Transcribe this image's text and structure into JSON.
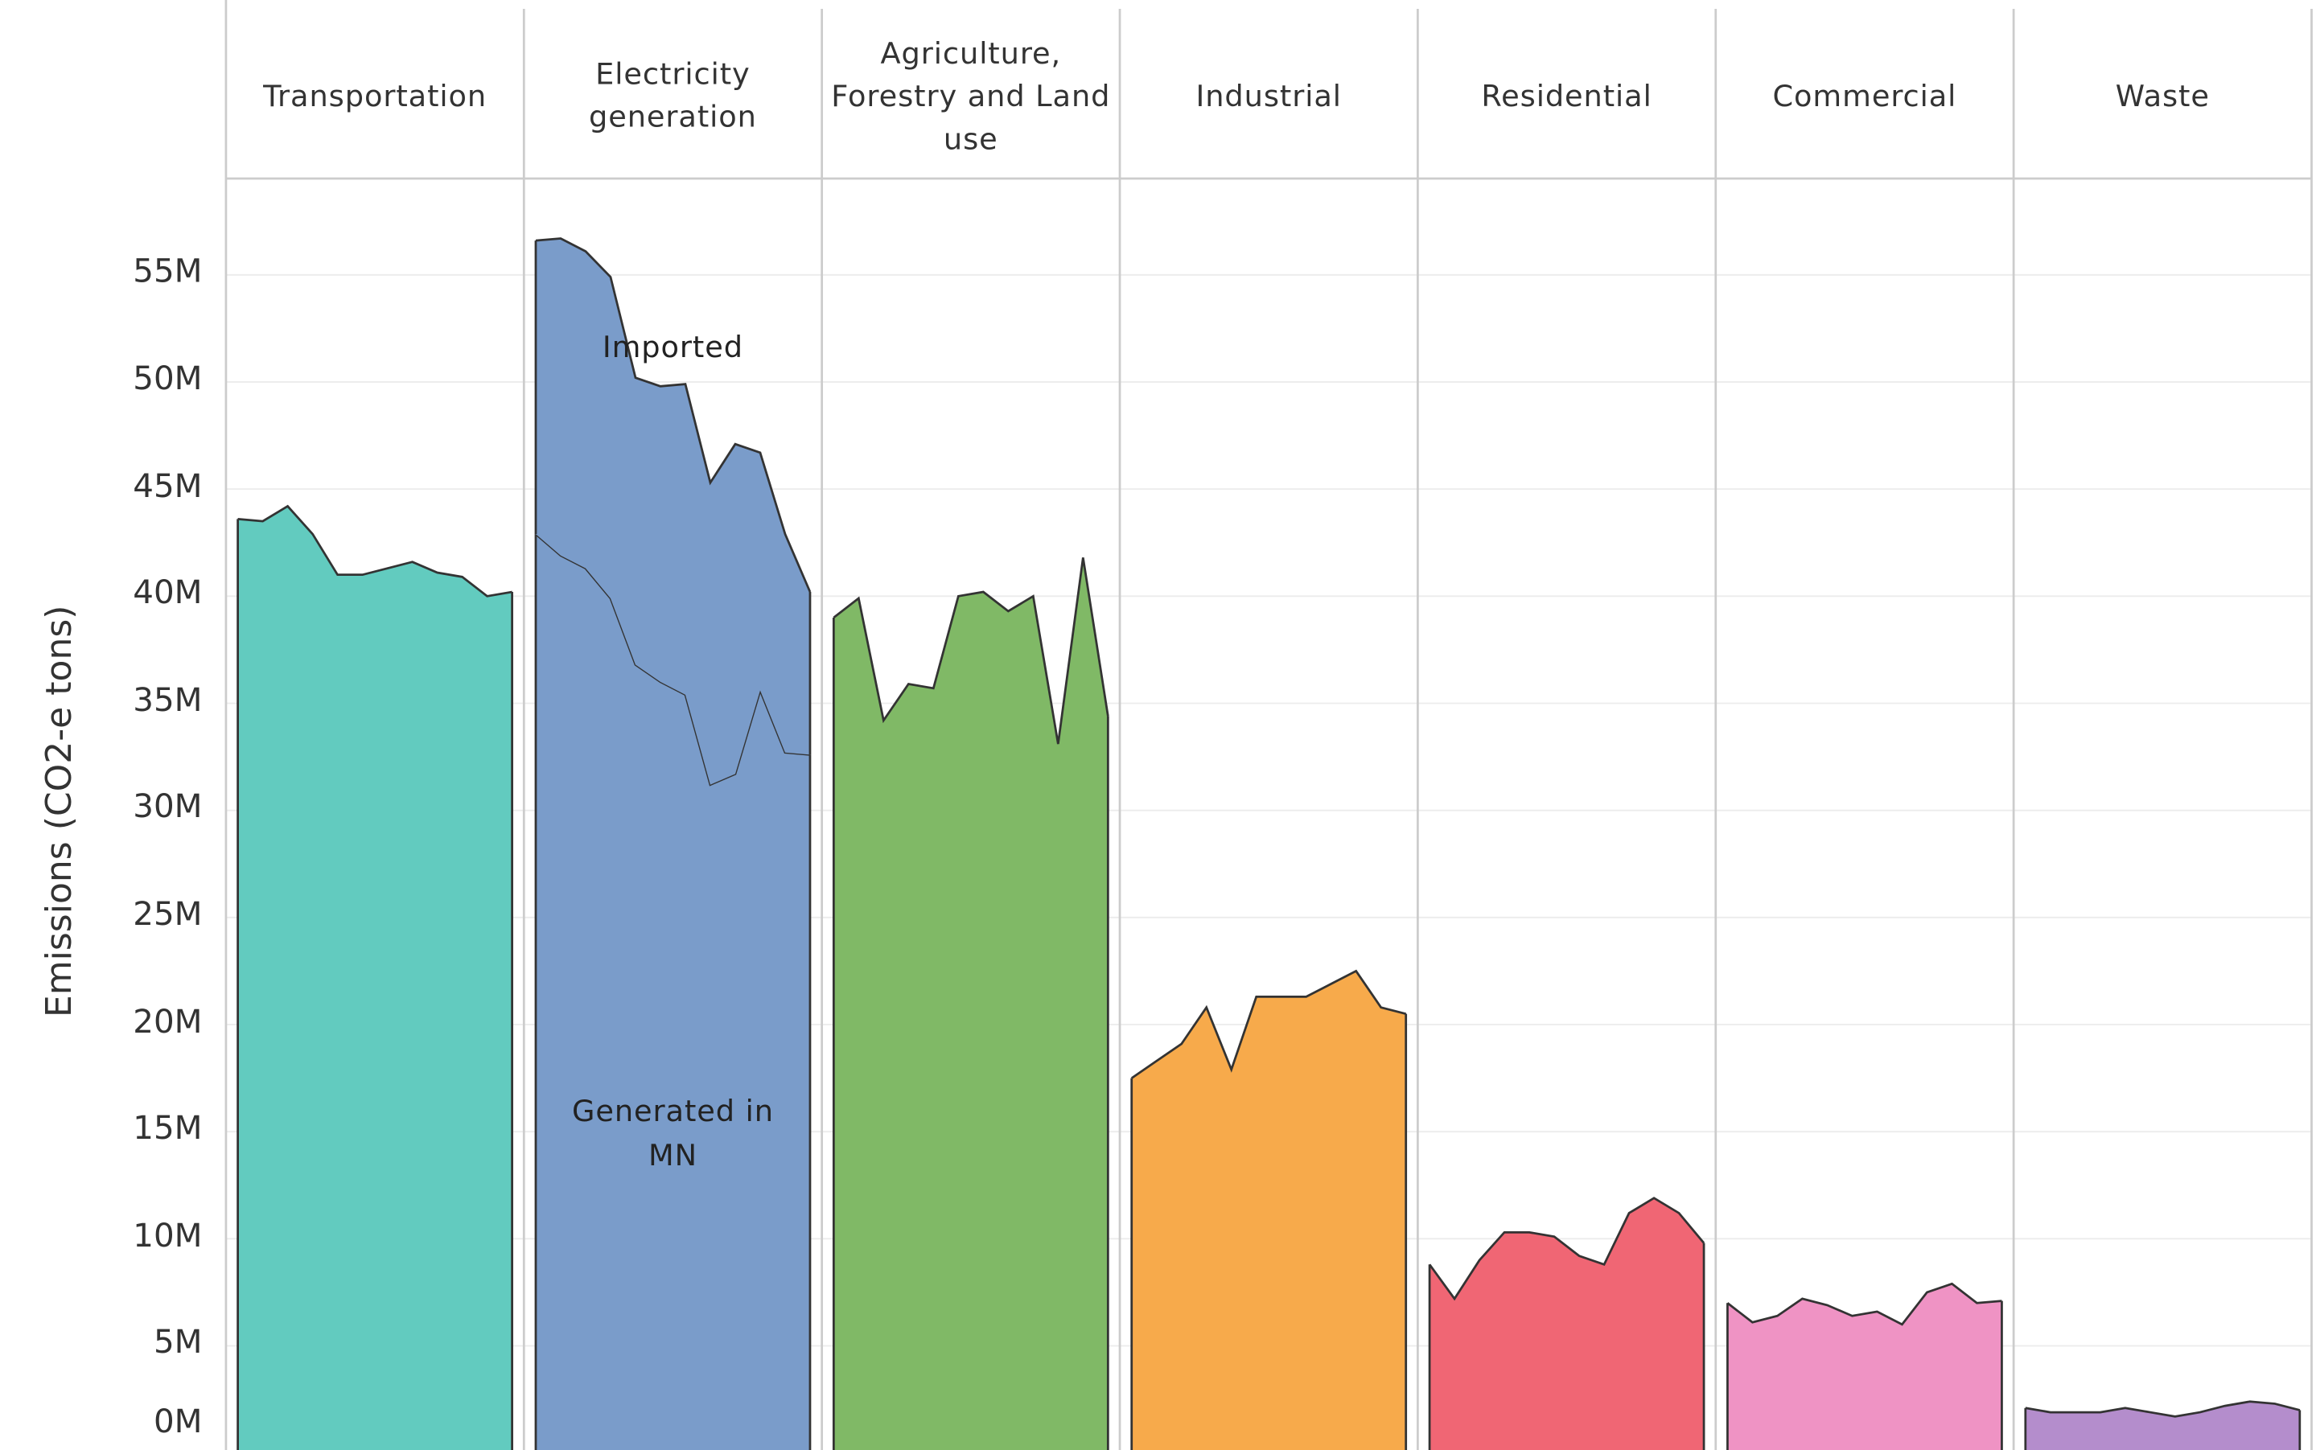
{
  "chart_data": {
    "type": "area",
    "ylabel": "Emissions (CO2-e tons)",
    "ylim": [
      0,
      59500000
    ],
    "yticks": [
      {
        "value": 0,
        "label": "0M"
      },
      {
        "value": 5000000,
        "label": "5M"
      },
      {
        "value": 10000000,
        "label": "10M"
      },
      {
        "value": 15000000,
        "label": "15M"
      },
      {
        "value": 20000000,
        "label": "20M"
      },
      {
        "value": 25000000,
        "label": "25M"
      },
      {
        "value": 30000000,
        "label": "30M"
      },
      {
        "value": 35000000,
        "label": "35M"
      },
      {
        "value": 40000000,
        "label": "40M"
      },
      {
        "value": 45000000,
        "label": "45M"
      },
      {
        "value": 50000000,
        "label": "50M"
      },
      {
        "value": 55000000,
        "label": "55M"
      }
    ],
    "grid": true,
    "panels": [
      {
        "title": "Transportation",
        "series": [
          {
            "color": "#62cbbf",
            "values": [
              43600000,
              43500000,
              44200000,
              42900000,
              41000000,
              41000000,
              41300000,
              41600000,
              41100000,
              40900000,
              40000000,
              40200000
            ]
          }
        ]
      },
      {
        "title": "Electricity generation",
        "series": [
          {
            "name": "Generated in MN",
            "color": "#7a9cca",
            "values": [
              42900000,
              41900000,
              41300000,
              39900000,
              36800000,
              36000000,
              35400000,
              31200000,
              31700000,
              35600000,
              32700000,
              32600000
            ]
          },
          {
            "name": "Imported",
            "color": "#7a9cca",
            "values": [
              13700000,
              14800000,
              14800000,
              15000000,
              13400000,
              13800000,
              14500000,
              14100000,
              15400000,
              11100000,
              10200000,
              7600000
            ]
          }
        ]
      },
      {
        "title": "Agriculture, Forestry and Land use",
        "series": [
          {
            "color": "#80b966",
            "values": [
              39000000,
              39900000,
              34200000,
              35900000,
              35700000,
              40000000,
              40200000,
              39300000,
              40000000,
              33100000,
              41800000,
              34400000
            ]
          }
        ]
      },
      {
        "title": "Industrial",
        "series": [
          {
            "color": "#f7aa4b",
            "values": [
              17500000,
              18300000,
              19100000,
              20800000,
              17900000,
              21300000,
              21300000,
              21300000,
              21900000,
              22500000,
              20800000,
              20500000
            ]
          }
        ]
      },
      {
        "title": "Residential",
        "series": [
          {
            "color": "#f06674",
            "values": [
              8800000,
              7200000,
              9000000,
              10300000,
              10300000,
              10100000,
              9200000,
              8800000,
              11200000,
              11900000,
              11200000,
              9800000
            ]
          }
        ]
      },
      {
        "title": "Commercial",
        "series": [
          {
            "color": "#ef93c4",
            "values": [
              7000000,
              6100000,
              6400000,
              7200000,
              6900000,
              6400000,
              6600000,
              6000000,
              7500000,
              7900000,
              7000000,
              7100000
            ]
          }
        ]
      },
      {
        "title": "Waste",
        "series": [
          {
            "color": "#b48dcc",
            "values": [
              2100000,
              1900000,
              1900000,
              1900000,
              2100000,
              1900000,
              1700000,
              1900000,
              2200000,
              2400000,
              2300000,
              2000000
            ]
          }
        ]
      }
    ]
  }
}
